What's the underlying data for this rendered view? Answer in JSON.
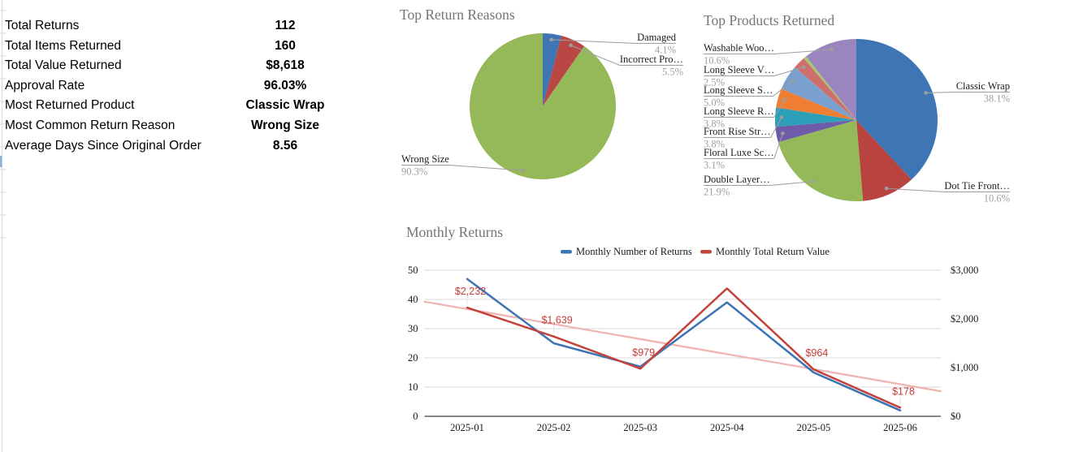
{
  "stats": {
    "rows": [
      {
        "label": "Total Returns",
        "value": "112"
      },
      {
        "label": "Total Items Returned",
        "value": "160"
      },
      {
        "label": "Total Value Returned",
        "value": "$8,618"
      },
      {
        "label": "Approval Rate",
        "value": "96.03%"
      },
      {
        "label": "Most Returned Product",
        "value": "Classic Wrap"
      },
      {
        "label": "Most Common Return Reason",
        "value": "Wrong Size"
      },
      {
        "label": "Average Days Since Original Order",
        "value": "8.56"
      }
    ]
  },
  "colors": {
    "title_grey": "#757575",
    "label_grey": "#9e9e9e",
    "gridline": "#d9d9d9",
    "axis_line": "#424242",
    "data_label_red": "#c23b35"
  },
  "chart_data": [
    {
      "type": "pie",
      "title": "Top Return Reasons",
      "slices": [
        {
          "display": "Damaged",
          "pct": 4.1,
          "color": "#3e76b5"
        },
        {
          "display": "Incorrect Pro…",
          "pct": 5.5,
          "color": "#b94845"
        },
        {
          "display": "Wrong Size",
          "pct": 90.3,
          "color": "#95b958"
        }
      ]
    },
    {
      "type": "pie",
      "title": "Top Products Returned",
      "slices": [
        {
          "display": "Classic Wrap",
          "pct": 38.1,
          "color": "#3e76b5"
        },
        {
          "display": "Dot Tie Front…",
          "pct": 10.6,
          "color": "#b9433f"
        },
        {
          "display": "Double Layer…",
          "pct": 21.9,
          "color": "#95b958"
        },
        {
          "display": "Floral Luxe Sc…",
          "pct": 3.1,
          "color": "#6e5ca8"
        },
        {
          "display": "Front Rise Str…",
          "pct": 3.8,
          "color": "#2d9fb8"
        },
        {
          "display": "Long Sleeve R…",
          "pct": 3.8,
          "color": "#ef7e32"
        },
        {
          "display": "Long Sleeve S…",
          "pct": 5.0,
          "color": "#7aa0cf"
        },
        {
          "display": "Long Sleeve V…",
          "pct": 2.5,
          "color": "#cf6f6d"
        },
        {
          "display": "",
          "pct": 0.6,
          "color": "#a6c56e"
        },
        {
          "display": "Washable Woo…",
          "pct": 10.6,
          "color": "#9b85be"
        }
      ]
    },
    {
      "type": "line",
      "title": "Monthly Returns",
      "x": [
        "2025-01",
        "2025-02",
        "2025-03",
        "2025-04",
        "2025-05",
        "2025-06"
      ],
      "series": [
        {
          "name": "Monthly Number of Returns",
          "axis": "left",
          "color": "#3b74b6",
          "values": [
            47,
            25,
            17,
            39,
            15,
            2
          ],
          "labels": [
            "",
            "",
            "",
            "",
            "",
            ""
          ]
        },
        {
          "name": "Monthly Total Return Value",
          "axis": "right",
          "color": "#c2423c",
          "values": [
            2232,
            1639,
            979,
            2626,
            964,
            178
          ],
          "labels": [
            "$2,232",
            "$1,639",
            "$979",
            "",
            "$964",
            "$178"
          ]
        }
      ],
      "trendline": {
        "color": "#f0b5b1",
        "start_value": 2355,
        "end_value": 515,
        "axis": "right"
      },
      "left_axis": {
        "ticks": [
          "0",
          "10",
          "20",
          "30",
          "40",
          "50"
        ],
        "values": [
          0,
          10,
          20,
          30,
          40,
          50
        ],
        "min": 0,
        "max": 50
      },
      "right_axis": {
        "ticks": [
          "$0",
          "$1,000",
          "$2,000",
          "$3,000"
        ],
        "values": [
          0,
          1000,
          2000,
          3000
        ],
        "min": 0,
        "max": 3000
      },
      "legend_position": "top"
    }
  ]
}
